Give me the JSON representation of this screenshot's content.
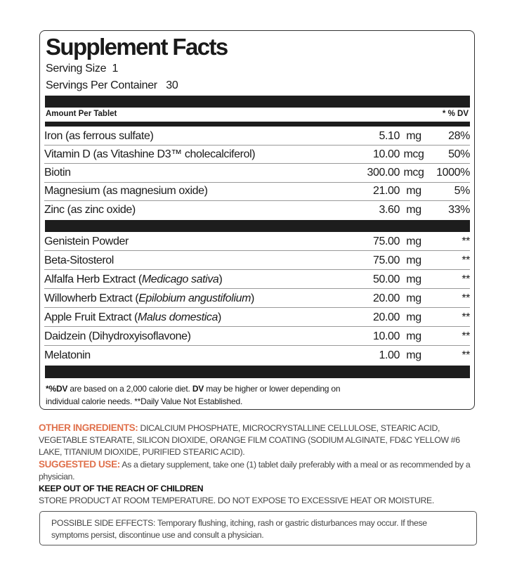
{
  "panel": {
    "title": "Supplement Facts",
    "serving_size_label": "Serving Size",
    "serving_size": "1",
    "servings_per_container_label": "Servings Per Container",
    "servings_per_container": "30",
    "amount_header": "Amount Per Tablet",
    "dv_header": "* % DV",
    "vitamins": [
      {
        "name": "Iron (as ferrous sulfate)",
        "amount": "5.10",
        "unit": "mg",
        "dv": "28%"
      },
      {
        "name": "Vitamin D (as Vitashine D3™ cholecalciferol)",
        "amount": "10.00",
        "unit": "mcg",
        "dv": "50%"
      },
      {
        "name": "Biotin",
        "amount": "300.00",
        "unit": "mcg",
        "dv": "1000%"
      },
      {
        "name": "Magnesium (as magnesium oxide)",
        "amount": "21.00",
        "unit": "mg",
        "dv": "5%"
      },
      {
        "name": "Zinc (as zinc oxide)",
        "amount": "3.60",
        "unit": "mg",
        "dv": "33%"
      }
    ],
    "others": [
      {
        "name": "Genistein Powder",
        "latin": "",
        "close": "",
        "amount": "75.00",
        "unit": "mg",
        "dv": "**"
      },
      {
        "name": "Beta-Sitosterol",
        "latin": "",
        "close": "",
        "amount": "75.00",
        "unit": "mg",
        "dv": "**"
      },
      {
        "name": "Alfalfa Herb Extract (",
        "latin": "Medicago sativa",
        "close": ")",
        "amount": "50.00",
        "unit": "mg",
        "dv": "**"
      },
      {
        "name": "Willowherb Extract (",
        "latin": "Epilobium angustifolium",
        "close": ")",
        "amount": "20.00",
        "unit": "mg",
        "dv": "**"
      },
      {
        "name": "Apple Fruit Extract (",
        "latin": "Malus domestica",
        "close": ")",
        "amount": "20.00",
        "unit": "mg",
        "dv": "**"
      },
      {
        "name": "Daidzein (Dihydroxyisoflavone)",
        "latin": "",
        "close": "",
        "amount": "10.00",
        "unit": "mg",
        "dv": "**"
      },
      {
        "name": "Melatonin",
        "latin": "",
        "close": "",
        "amount": "1.00",
        "unit": "mg",
        "dv": "**"
      }
    ],
    "footnote_a1": "*%DV",
    "footnote_a2": " are based on a 2,000 calorie diet. ",
    "footnote_a3": "DV",
    "footnote_a4": " may be higher or lower depending on",
    "footnote_b": "individual calorie needs.  **Daily Value Not Established."
  },
  "info": {
    "other_label": "OTHER INGREDIENTS:",
    "other_text": " DICALCIUM PHOSPHATE, MICROCRYSTALLINE CELLULOSE, STEARIC ACID, VEGETABLE STEARATE, SILICON DIOXIDE, ORANGE FILM COATING (SODIUM ALGINATE, FD&C YELLOW #6 LAKE, TITANIUM DIOXIDE, PURIFIED STEARIC ACID).",
    "use_label": "SUGGESTED USE:",
    "use_text": " As a dietary supplement, take one (1) tablet daily preferably with a meal or as recommended by a physician.",
    "keep": "KEEP OUT OF THE REACH OF CHILDREN",
    "store": "STORE PRODUCT AT ROOM TEMPERATURE. DO NOT EXPOSE TO EXCESSIVE HEAT OR MOISTURE.",
    "side_effects": "POSSIBLE SIDE EFFECTS: Temporary flushing, itching, rash or gastric disturbances may occur. If these symptoms persist, discontinue use and consult a physician."
  },
  "colors": {
    "accent": "#e0714c",
    "bars": "#1d1d1d"
  }
}
